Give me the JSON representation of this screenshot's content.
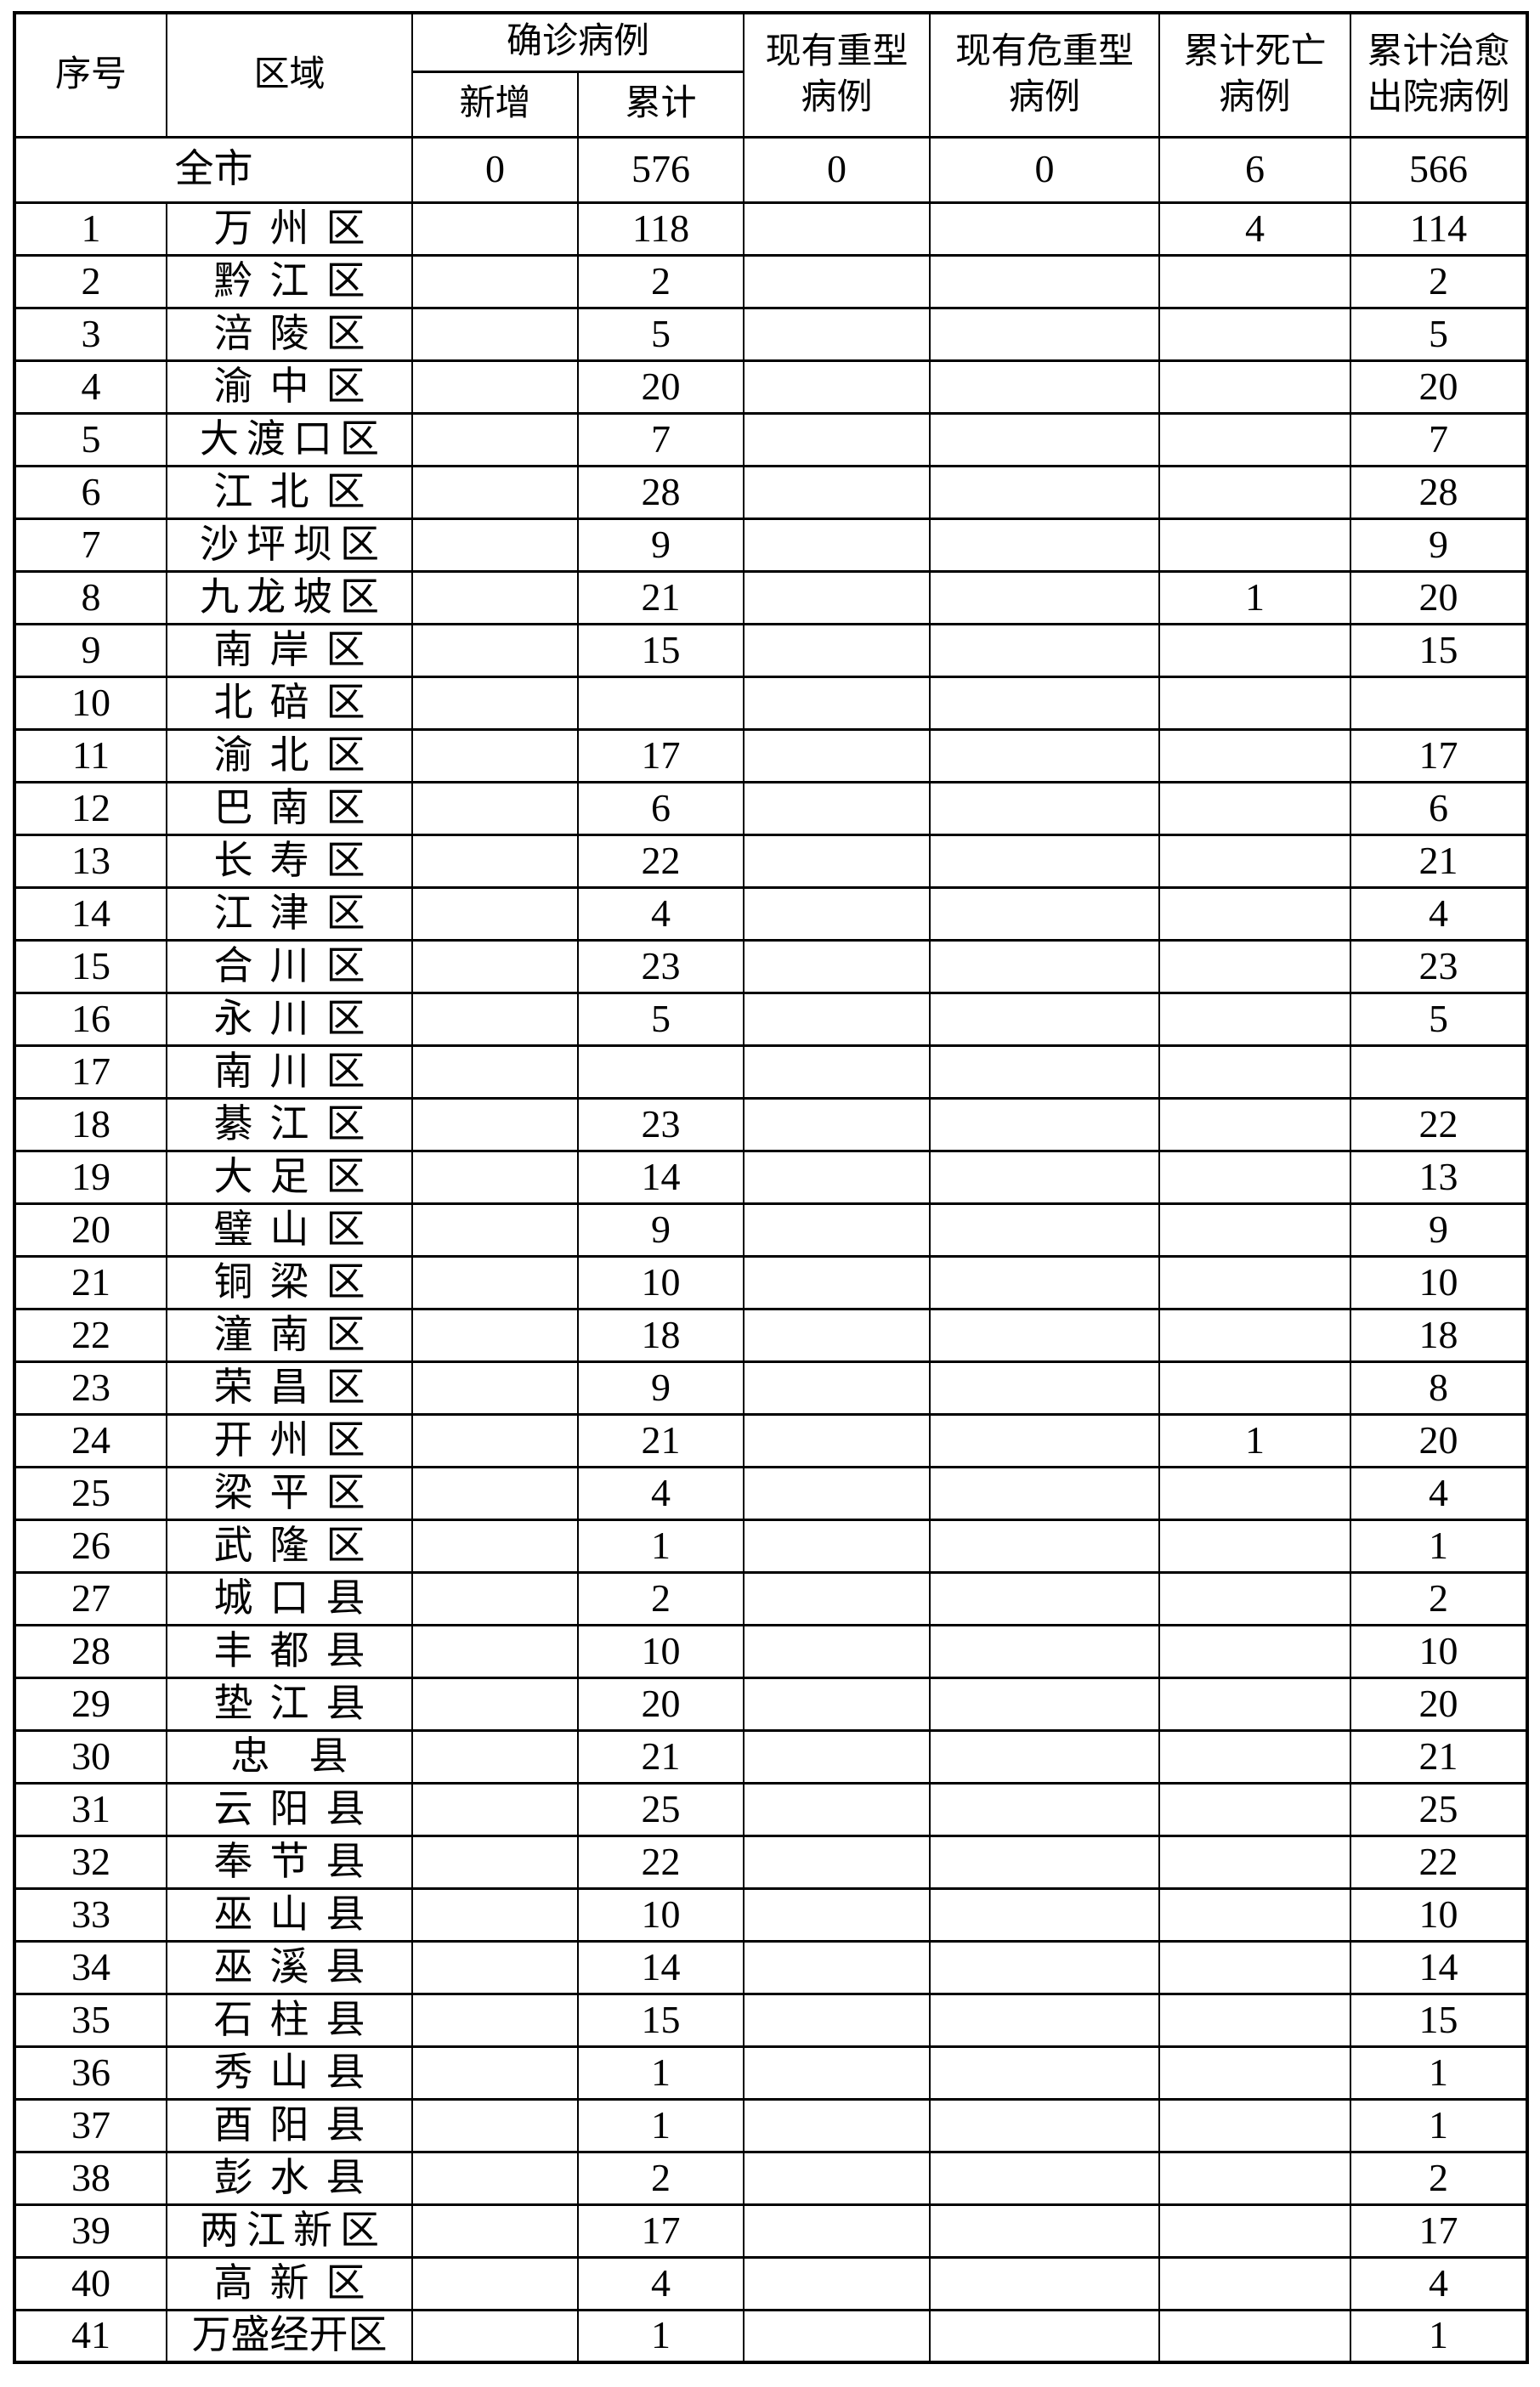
{
  "colors": {
    "background": "#ffffff",
    "border": "#000000",
    "text": "#000000"
  },
  "table": {
    "header": {
      "serial": "序号",
      "region": "区域",
      "confirmed_group": "确诊病例",
      "new": "新增",
      "cumulative": "累计",
      "severe": [
        "现有重型",
        "病例"
      ],
      "critical": [
        "现有危重型",
        "病例"
      ],
      "deaths": [
        "累计死亡",
        "病例"
      ],
      "cured": [
        "累计治愈",
        "出院病例"
      ]
    },
    "summary": {
      "region": "全市",
      "new": "0",
      "cumulative": "576",
      "severe": "0",
      "critical": "0",
      "deaths": "6",
      "cured": "566"
    },
    "rows": [
      {
        "no": "1",
        "region": "万州区",
        "new": "",
        "cumulative": "118",
        "severe": "",
        "critical": "",
        "deaths": "4",
        "cured": "114"
      },
      {
        "no": "2",
        "region": "黔江区",
        "new": "",
        "cumulative": "2",
        "severe": "",
        "critical": "",
        "deaths": "",
        "cured": "2"
      },
      {
        "no": "3",
        "region": "涪陵区",
        "new": "",
        "cumulative": "5",
        "severe": "",
        "critical": "",
        "deaths": "",
        "cured": "5"
      },
      {
        "no": "4",
        "region": "渝中区",
        "new": "",
        "cumulative": "20",
        "severe": "",
        "critical": "",
        "deaths": "",
        "cured": "20"
      },
      {
        "no": "5",
        "region": "大渡口区",
        "new": "",
        "cumulative": "7",
        "severe": "",
        "critical": "",
        "deaths": "",
        "cured": "7"
      },
      {
        "no": "6",
        "region": "江北区",
        "new": "",
        "cumulative": "28",
        "severe": "",
        "critical": "",
        "deaths": "",
        "cured": "28"
      },
      {
        "no": "7",
        "region": "沙坪坝区",
        "new": "",
        "cumulative": "9",
        "severe": "",
        "critical": "",
        "deaths": "",
        "cured": "9"
      },
      {
        "no": "8",
        "region": "九龙坡区",
        "new": "",
        "cumulative": "21",
        "severe": "",
        "critical": "",
        "deaths": "1",
        "cured": "20"
      },
      {
        "no": "9",
        "region": "南岸区",
        "new": "",
        "cumulative": "15",
        "severe": "",
        "critical": "",
        "deaths": "",
        "cured": "15"
      },
      {
        "no": "10",
        "region": "北碚区",
        "new": "",
        "cumulative": "",
        "severe": "",
        "critical": "",
        "deaths": "",
        "cured": ""
      },
      {
        "no": "11",
        "region": "渝北区",
        "new": "",
        "cumulative": "17",
        "severe": "",
        "critical": "",
        "deaths": "",
        "cured": "17"
      },
      {
        "no": "12",
        "region": "巴南区",
        "new": "",
        "cumulative": "6",
        "severe": "",
        "critical": "",
        "deaths": "",
        "cured": "6"
      },
      {
        "no": "13",
        "region": "长寿区",
        "new": "",
        "cumulative": "22",
        "severe": "",
        "critical": "",
        "deaths": "",
        "cured": "21"
      },
      {
        "no": "14",
        "region": "江津区",
        "new": "",
        "cumulative": "4",
        "severe": "",
        "critical": "",
        "deaths": "",
        "cured": "4"
      },
      {
        "no": "15",
        "region": "合川区",
        "new": "",
        "cumulative": "23",
        "severe": "",
        "critical": "",
        "deaths": "",
        "cured": "23"
      },
      {
        "no": "16",
        "region": "永川区",
        "new": "",
        "cumulative": "5",
        "severe": "",
        "critical": "",
        "deaths": "",
        "cured": "5"
      },
      {
        "no": "17",
        "region": "南川区",
        "new": "",
        "cumulative": "",
        "severe": "",
        "critical": "",
        "deaths": "",
        "cured": ""
      },
      {
        "no": "18",
        "region": "綦江区",
        "new": "",
        "cumulative": "23",
        "severe": "",
        "critical": "",
        "deaths": "",
        "cured": "22"
      },
      {
        "no": "19",
        "region": "大足区",
        "new": "",
        "cumulative": "14",
        "severe": "",
        "critical": "",
        "deaths": "",
        "cured": "13"
      },
      {
        "no": "20",
        "region": "璧山区",
        "new": "",
        "cumulative": "9",
        "severe": "",
        "critical": "",
        "deaths": "",
        "cured": "9"
      },
      {
        "no": "21",
        "region": "铜梁区",
        "new": "",
        "cumulative": "10",
        "severe": "",
        "critical": "",
        "deaths": "",
        "cured": "10"
      },
      {
        "no": "22",
        "region": "潼南区",
        "new": "",
        "cumulative": "18",
        "severe": "",
        "critical": "",
        "deaths": "",
        "cured": "18"
      },
      {
        "no": "23",
        "region": "荣昌区",
        "new": "",
        "cumulative": "9",
        "severe": "",
        "critical": "",
        "deaths": "",
        "cured": "8"
      },
      {
        "no": "24",
        "region": "开州区",
        "new": "",
        "cumulative": "21",
        "severe": "",
        "critical": "",
        "deaths": "1",
        "cured": "20"
      },
      {
        "no": "25",
        "region": "梁平区",
        "new": "",
        "cumulative": "4",
        "severe": "",
        "critical": "",
        "deaths": "",
        "cured": "4"
      },
      {
        "no": "26",
        "region": "武隆区",
        "new": "",
        "cumulative": "1",
        "severe": "",
        "critical": "",
        "deaths": "",
        "cured": "1"
      },
      {
        "no": "27",
        "region": "城口县",
        "new": "",
        "cumulative": "2",
        "severe": "",
        "critical": "",
        "deaths": "",
        "cured": "2"
      },
      {
        "no": "28",
        "region": "丰都县",
        "new": "",
        "cumulative": "10",
        "severe": "",
        "critical": "",
        "deaths": "",
        "cured": "10"
      },
      {
        "no": "29",
        "region": "垫江县",
        "new": "",
        "cumulative": "20",
        "severe": "",
        "critical": "",
        "deaths": "",
        "cured": "20"
      },
      {
        "no": "30",
        "region": "忠　县",
        "new": "",
        "cumulative": "21",
        "severe": "",
        "critical": "",
        "deaths": "",
        "cured": "21"
      },
      {
        "no": "31",
        "region": "云阳县",
        "new": "",
        "cumulative": "25",
        "severe": "",
        "critical": "",
        "deaths": "",
        "cured": "25"
      },
      {
        "no": "32",
        "region": "奉节县",
        "new": "",
        "cumulative": "22",
        "severe": "",
        "critical": "",
        "deaths": "",
        "cured": "22"
      },
      {
        "no": "33",
        "region": "巫山县",
        "new": "",
        "cumulative": "10",
        "severe": "",
        "critical": "",
        "deaths": "",
        "cured": "10"
      },
      {
        "no": "34",
        "region": "巫溪县",
        "new": "",
        "cumulative": "14",
        "severe": "",
        "critical": "",
        "deaths": "",
        "cured": "14"
      },
      {
        "no": "35",
        "region": "石柱县",
        "new": "",
        "cumulative": "15",
        "severe": "",
        "critical": "",
        "deaths": "",
        "cured": "15"
      },
      {
        "no": "36",
        "region": "秀山县",
        "new": "",
        "cumulative": "1",
        "severe": "",
        "critical": "",
        "deaths": "",
        "cured": "1"
      },
      {
        "no": "37",
        "region": "酉阳县",
        "new": "",
        "cumulative": "1",
        "severe": "",
        "critical": "",
        "deaths": "",
        "cured": "1"
      },
      {
        "no": "38",
        "region": "彭水县",
        "new": "",
        "cumulative": "2",
        "severe": "",
        "critical": "",
        "deaths": "",
        "cured": "2"
      },
      {
        "no": "39",
        "region": "两江新区",
        "new": "",
        "cumulative": "17",
        "severe": "",
        "critical": "",
        "deaths": "",
        "cured": "17"
      },
      {
        "no": "40",
        "region": "高新区",
        "new": "",
        "cumulative": "4",
        "severe": "",
        "critical": "",
        "deaths": "",
        "cured": "4"
      },
      {
        "no": "41",
        "region": "万盛经开区",
        "new": "",
        "cumulative": "1",
        "severe": "",
        "critical": "",
        "deaths": "",
        "cured": "1"
      }
    ]
  }
}
